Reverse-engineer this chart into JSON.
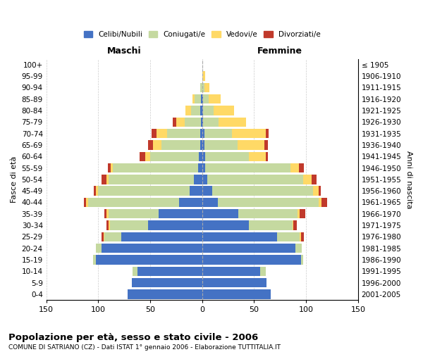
{
  "age_groups_bottom_to_top": [
    "0-4",
    "5-9",
    "10-14",
    "15-19",
    "20-24",
    "25-29",
    "30-34",
    "35-39",
    "40-44",
    "45-49",
    "50-54",
    "55-59",
    "60-64",
    "65-69",
    "70-74",
    "75-79",
    "80-84",
    "85-89",
    "90-94",
    "95-99",
    "100+"
  ],
  "birth_years_bottom_to_top": [
    "2001-2005",
    "1996-2000",
    "1991-1995",
    "1986-1990",
    "1981-1985",
    "1976-1980",
    "1971-1975",
    "1966-1970",
    "1961-1965",
    "1956-1960",
    "1951-1955",
    "1946-1950",
    "1941-1945",
    "1936-1940",
    "1931-1935",
    "1926-1930",
    "1921-1925",
    "1916-1920",
    "1911-1915",
    "1906-1910",
    "≤ 1905"
  ],
  "males_celibi": [
    72,
    68,
    62,
    102,
    97,
    78,
    52,
    42,
    22,
    12,
    8,
    4,
    3,
    2,
    2,
    1,
    2,
    1,
    0,
    0,
    0
  ],
  "males_coniugati": [
    0,
    0,
    5,
    3,
    5,
    16,
    37,
    48,
    88,
    88,
    82,
    82,
    47,
    37,
    32,
    16,
    9,
    6,
    2,
    0,
    0
  ],
  "males_vedovi": [
    0,
    0,
    0,
    0,
    0,
    1,
    1,
    2,
    2,
    2,
    2,
    2,
    5,
    8,
    10,
    8,
    5,
    2,
    0,
    0,
    0
  ],
  "males_divorziati": [
    0,
    0,
    0,
    0,
    0,
    2,
    2,
    2,
    2,
    2,
    5,
    3,
    5,
    5,
    5,
    3,
    0,
    0,
    0,
    0,
    0
  ],
  "females_nubili": [
    66,
    62,
    56,
    95,
    90,
    72,
    45,
    35,
    15,
    10,
    5,
    3,
    3,
    2,
    2,
    1,
    1,
    1,
    0,
    0,
    0
  ],
  "females_coniugate": [
    0,
    0,
    5,
    2,
    6,
    22,
    42,
    57,
    97,
    97,
    92,
    82,
    42,
    32,
    27,
    15,
    10,
    5,
    2,
    0,
    0
  ],
  "females_vedove": [
    0,
    0,
    0,
    0,
    0,
    1,
    1,
    2,
    3,
    5,
    8,
    8,
    16,
    26,
    32,
    26,
    20,
    12,
    5,
    3,
    0
  ],
  "females_divorziate": [
    0,
    0,
    0,
    0,
    0,
    3,
    3,
    5,
    5,
    2,
    5,
    5,
    2,
    3,
    3,
    0,
    0,
    0,
    0,
    0,
    0
  ],
  "colors": {
    "celibi_nubili": "#4472c4",
    "coniugati_e": "#c5d9a0",
    "vedovi_e": "#ffd966",
    "divorziati_e": "#c0392b"
  },
  "xlim": 150,
  "title": "Popolazione per età, sesso e stato civile - 2006",
  "subtitle": "COMUNE DI SATRIANO (CZ) - Dati ISTAT 1° gennaio 2006 - Elaborazione TUTTITALIA.IT",
  "xlabel_left": "Maschi",
  "xlabel_right": "Femmine",
  "ylabel_left": "Fasce di età",
  "ylabel_right": "Anni di nascita",
  "background_color": "#ffffff",
  "grid_color": "#cccccc"
}
